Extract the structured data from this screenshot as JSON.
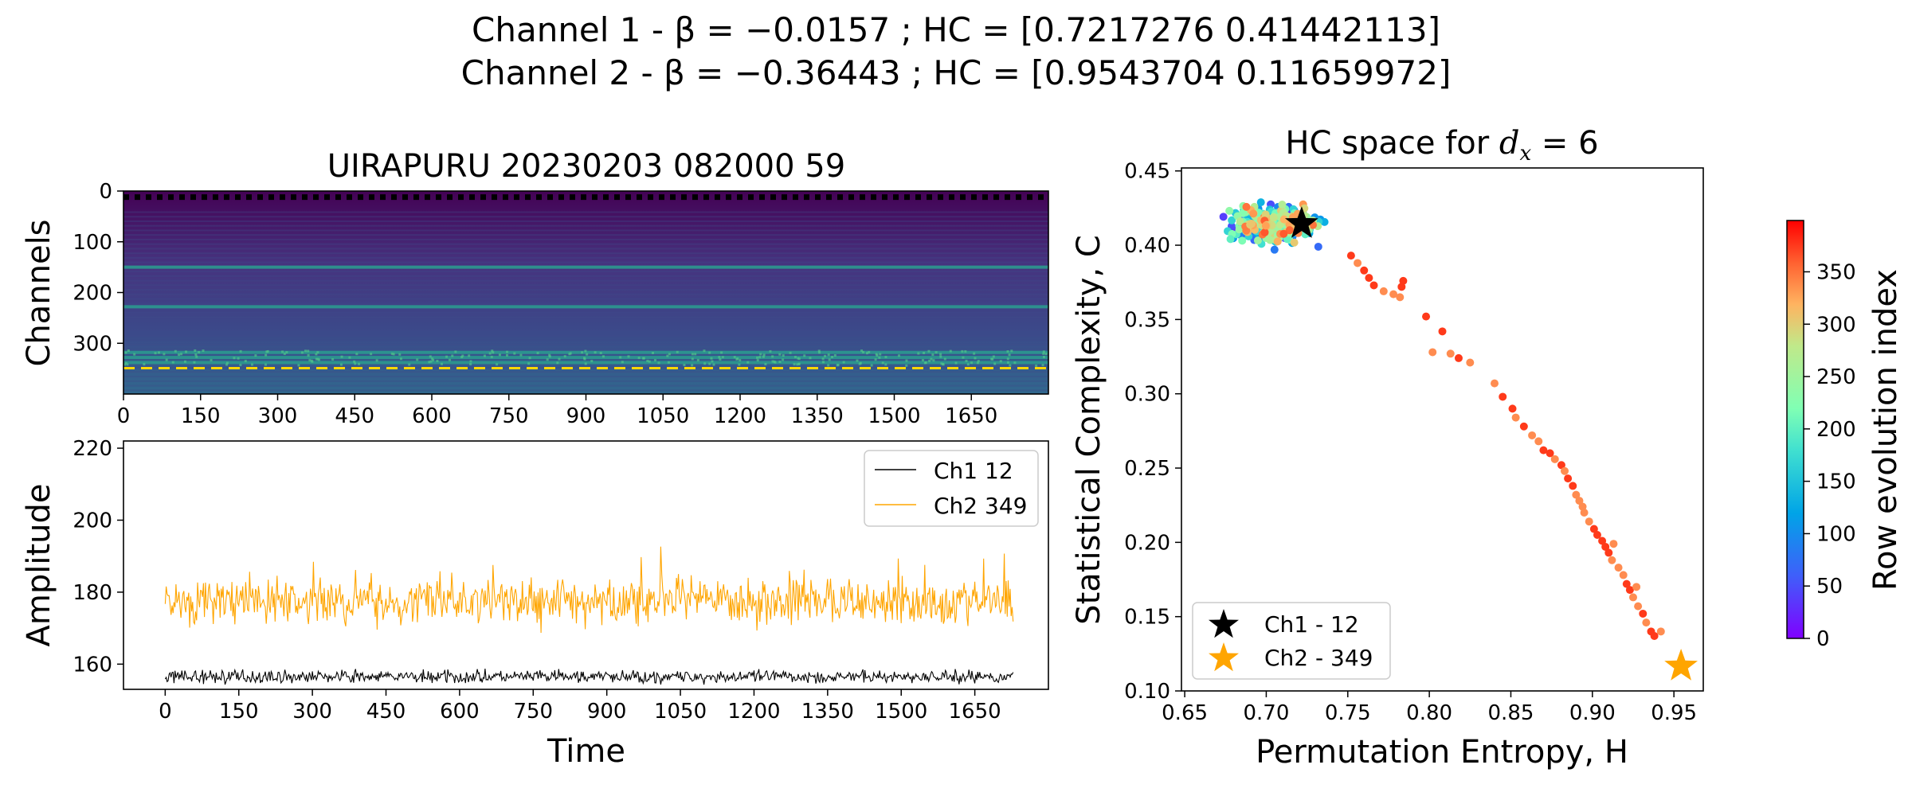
{
  "figure": {
    "suptitle_line1": "Channel 1 - β = −0.0157 ; HC = [0.7217276  0.41442113]",
    "suptitle_line2": "Channel 2 - β = −0.36443 ; HC = [0.9543704  0.11659972]"
  },
  "colors": {
    "ch1": "#000000",
    "ch2": "#ffa500",
    "dashed_ch1": "#000000",
    "dashed_ch2": "#ffd700"
  },
  "chart_data": [
    {
      "type": "heatmap",
      "title": "UIRAPURU 20230203 082000 59",
      "ylabel": "Channels",
      "xlabel": "",
      "xlim": [
        0,
        1800
      ],
      "ylim": [
        400,
        0
      ],
      "xticks": [
        0,
        150,
        300,
        450,
        600,
        750,
        900,
        1050,
        1200,
        1350,
        1500,
        1650
      ],
      "yticks": [
        0,
        100,
        200,
        300
      ],
      "colormap": "viridis",
      "highlighted_rows": [
        {
          "channel": 12,
          "style": "dotted",
          "color": "#000000"
        },
        {
          "channel": 349,
          "style": "dashed",
          "color": "#ffd700"
        }
      ],
      "bright_rows": [
        150,
        228,
        318,
        328,
        338
      ]
    },
    {
      "type": "line",
      "title": "",
      "xlabel": "Time",
      "ylabel": "Amplitude",
      "xlim": [
        -85,
        1800
      ],
      "ylim": [
        153,
        222
      ],
      "xticks": [
        0,
        150,
        300,
        450,
        600,
        750,
        900,
        1050,
        1200,
        1350,
        1500,
        1650
      ],
      "yticks": [
        160,
        180,
        200,
        220
      ],
      "legend_position": "top-right",
      "series": [
        {
          "name": "Ch1 12",
          "color": "#000000",
          "mean": 156.5,
          "spread": 1.2
        },
        {
          "name": "Ch2 349",
          "color": "#ffa500",
          "mean": 177.5,
          "spread": 4.5
        }
      ]
    },
    {
      "type": "scatter",
      "title": "HC space for d_x = 6",
      "xlabel": "Permutation Entropy, H",
      "ylabel": "Statistical Complexity, C",
      "xlim": [
        0.648,
        0.968
      ],
      "ylim": [
        0.1,
        0.452
      ],
      "xticks": [
        0.65,
        0.7,
        0.75,
        0.8,
        0.85,
        0.9,
        0.95
      ],
      "yticks": [
        0.1,
        0.15,
        0.2,
        0.25,
        0.3,
        0.35,
        0.4,
        0.45
      ],
      "xtick_labels": [
        "0.65",
        "0.70",
        "0.75",
        "0.80",
        "0.85",
        "0.90",
        "0.95"
      ],
      "ytick_labels": [
        "0.10",
        "0.15",
        "0.20",
        "0.25",
        "0.30",
        "0.35",
        "0.40",
        "0.45"
      ],
      "legend_position": "bottom-left",
      "colorbar": {
        "label": "Row evolution index",
        "colormap": "rainbow",
        "range": [
          0,
          399
        ],
        "ticks": [
          0,
          50,
          100,
          150,
          200,
          250,
          300,
          350
        ]
      },
      "highlight_points": [
        {
          "name": "Ch1 - 12",
          "x": 0.7217276,
          "y": 0.41442113,
          "color": "#000000",
          "marker": "star"
        },
        {
          "name": "Ch2 -  349",
          "x": 0.9543704,
          "y": 0.11659972,
          "color": "#ffa500",
          "marker": "star"
        }
      ],
      "trail_points": [
        [
          0.752,
          0.393
        ],
        [
          0.756,
          0.388
        ],
        [
          0.76,
          0.383
        ],
        [
          0.763,
          0.378
        ],
        [
          0.766,
          0.373
        ],
        [
          0.772,
          0.369
        ],
        [
          0.778,
          0.367
        ],
        [
          0.783,
          0.372
        ],
        [
          0.784,
          0.376
        ],
        [
          0.782,
          0.365
        ],
        [
          0.798,
          0.352
        ],
        [
          0.808,
          0.342
        ],
        [
          0.802,
          0.328
        ],
        [
          0.813,
          0.327
        ],
        [
          0.818,
          0.324
        ],
        [
          0.825,
          0.321
        ],
        [
          0.84,
          0.307
        ],
        [
          0.845,
          0.298
        ],
        [
          0.851,
          0.29
        ],
        [
          0.853,
          0.284
        ],
        [
          0.858,
          0.278
        ],
        [
          0.863,
          0.272
        ],
        [
          0.867,
          0.268
        ],
        [
          0.87,
          0.262
        ],
        [
          0.874,
          0.26
        ],
        [
          0.877,
          0.256
        ],
        [
          0.881,
          0.252
        ],
        [
          0.883,
          0.248
        ],
        [
          0.885,
          0.243
        ],
        [
          0.888,
          0.238
        ],
        [
          0.89,
          0.232
        ],
        [
          0.892,
          0.228
        ],
        [
          0.894,
          0.224
        ],
        [
          0.895,
          0.22
        ],
        [
          0.898,
          0.214
        ],
        [
          0.901,
          0.209
        ],
        [
          0.903,
          0.205
        ],
        [
          0.906,
          0.201
        ],
        [
          0.908,
          0.197
        ],
        [
          0.91,
          0.193
        ],
        [
          0.912,
          0.188
        ],
        [
          0.916,
          0.183
        ],
        [
          0.919,
          0.178
        ],
        [
          0.921,
          0.172
        ],
        [
          0.923,
          0.168
        ],
        [
          0.925,
          0.163
        ],
        [
          0.928,
          0.157
        ],
        [
          0.931,
          0.152
        ],
        [
          0.933,
          0.146
        ],
        [
          0.936,
          0.14
        ],
        [
          0.938,
          0.137
        ],
        [
          0.942,
          0.14
        ],
        [
          0.927,
          0.17
        ],
        [
          0.913,
          0.199
        ]
      ],
      "cluster_center": [
        0.705,
        0.414
      ]
    }
  ]
}
